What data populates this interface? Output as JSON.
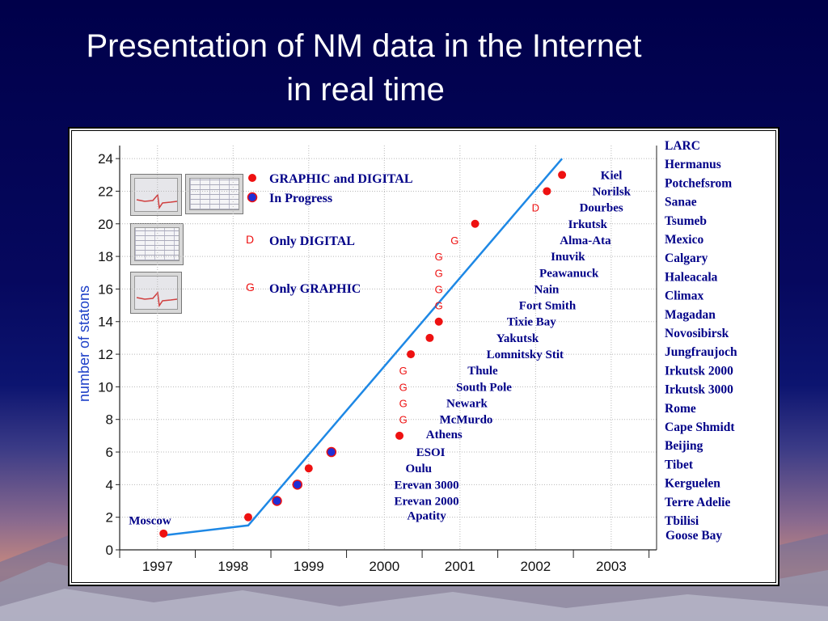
{
  "slide": {
    "title_line1": "Presentation of NM data in the Internet",
    "title_line2": "in real time"
  },
  "legend": {
    "graphic_and_digital": "GRAPHIC and  DIGITAL",
    "in_progress": "In Progress",
    "only_digital": "Only  DIGITAL",
    "only_graphic": "Only  GRAPHIC",
    "marker_d": "D",
    "marker_g": "G"
  },
  "colors": {
    "red": "#ee1111",
    "blue": "#1f2fd6",
    "trend": "#1e88e5",
    "axis_label": "#1e40c8",
    "station_text": "#000088"
  },
  "chart_data": {
    "type": "scatter",
    "ylabel": "number of statons",
    "xlabel": "",
    "x_ticks": [
      "1997",
      "1998",
      "1999",
      "2000",
      "2001",
      "2002",
      "2003"
    ],
    "y_ticks": [
      "0",
      "2",
      "4",
      "6",
      "8",
      "10",
      "12",
      "14",
      "16",
      "18",
      "20",
      "22",
      "24"
    ],
    "xlim": [
      1996.5,
      2003.6
    ],
    "ylim": [
      0,
      24.8
    ],
    "grid": true,
    "trend_line": [
      [
        1997.1,
        0.9
      ],
      [
        1998.2,
        1.5
      ],
      [
        2002.35,
        24
      ]
    ],
    "points": [
      {
        "x": 1997.08,
        "y": 1,
        "kind": "red"
      },
      {
        "x": 1998.2,
        "y": 2,
        "kind": "red"
      },
      {
        "x": 1998.58,
        "y": 3,
        "kind": "blue"
      },
      {
        "x": 1998.85,
        "y": 4,
        "kind": "blue"
      },
      {
        "x": 1999.0,
        "y": 5,
        "kind": "red"
      },
      {
        "x": 1999.3,
        "y": 6,
        "kind": "blue"
      },
      {
        "x": 2000.2,
        "y": 7,
        "kind": "red"
      },
      {
        "x": 2000.25,
        "y": 8,
        "kind": "G"
      },
      {
        "x": 2000.25,
        "y": 9,
        "kind": "G"
      },
      {
        "x": 2000.25,
        "y": 10,
        "kind": "G"
      },
      {
        "x": 2000.25,
        "y": 11,
        "kind": "G"
      },
      {
        "x": 2000.35,
        "y": 12,
        "kind": "red"
      },
      {
        "x": 2000.6,
        "y": 13,
        "kind": "red"
      },
      {
        "x": 2000.72,
        "y": 14,
        "kind": "red"
      },
      {
        "x": 2000.72,
        "y": 15,
        "kind": "G"
      },
      {
        "x": 2000.72,
        "y": 16,
        "kind": "G"
      },
      {
        "x": 2000.72,
        "y": 17,
        "kind": "G"
      },
      {
        "x": 2000.72,
        "y": 18,
        "kind": "G"
      },
      {
        "x": 2000.93,
        "y": 19,
        "kind": "G"
      },
      {
        "x": 2001.2,
        "y": 20,
        "kind": "red"
      },
      {
        "x": 2002.0,
        "y": 21,
        "kind": "D"
      },
      {
        "x": 2002.15,
        "y": 22,
        "kind": "red"
      },
      {
        "x": 2002.35,
        "y": 23,
        "kind": "red"
      }
    ],
    "point_labels": [
      {
        "x": 1996.62,
        "y": 1.8,
        "text": "Moscow"
      },
      {
        "x": 2000.3,
        "y": 2.1,
        "text": "Apatity"
      },
      {
        "x": 2000.13,
        "y": 3.0,
        "text": "Erevan 2000"
      },
      {
        "x": 2000.13,
        "y": 4.0,
        "text": "Erevan 3000"
      },
      {
        "x": 2000.28,
        "y": 5.0,
        "text": "Oulu"
      },
      {
        "x": 2000.42,
        "y": 6.0,
        "text": "ESOI"
      },
      {
        "x": 2000.55,
        "y": 7.1,
        "text": "Athens"
      },
      {
        "x": 2000.73,
        "y": 8.0,
        "text": "McMurdo"
      },
      {
        "x": 2000.82,
        "y": 9.0,
        "text": "Newark"
      },
      {
        "x": 2000.95,
        "y": 10.0,
        "text": "South Pole"
      },
      {
        "x": 2001.1,
        "y": 11.0,
        "text": "Thule"
      },
      {
        "x": 2001.35,
        "y": 12.0,
        "text": "Lomnitsky Stit"
      },
      {
        "x": 2001.48,
        "y": 13.0,
        "text": "Yakutsk"
      },
      {
        "x": 2001.62,
        "y": 14.0,
        "text": "Tixie Bay"
      },
      {
        "x": 2001.78,
        "y": 15.0,
        "text": "Fort Smith"
      },
      {
        "x": 2001.98,
        "y": 16.0,
        "text": "Nain"
      },
      {
        "x": 2002.05,
        "y": 17.0,
        "text": "Peawanuck"
      },
      {
        "x": 2002.2,
        "y": 18.0,
        "text": "Inuvik"
      },
      {
        "x": 2002.32,
        "y": 19.0,
        "text": "Alma-Ata"
      },
      {
        "x": 2002.43,
        "y": 20.0,
        "text": "Irkutsk"
      },
      {
        "x": 2002.58,
        "y": 21.0,
        "text": "Dourbes"
      },
      {
        "x": 2002.75,
        "y": 22.0,
        "text": "Norilsk"
      },
      {
        "x": 2002.86,
        "y": 23.0,
        "text": "Kiel"
      }
    ],
    "future_stations": [
      "LARC",
      "Hermanus",
      "Potchefsrom",
      "Sanae",
      "Tsumeb",
      "Mexico",
      "Calgary",
      "Haleacala",
      "Climax",
      "Magadan",
      "Novosibirsk",
      "Jungfraujoch",
      "Irkutsk 2000",
      "Irkutsk 3000",
      "Rome",
      "Cape Shmidt",
      "Beijing",
      "Tibet",
      "Kerguelen",
      "Terre Adelie",
      "Tbilisi",
      "Goose Bay"
    ]
  }
}
